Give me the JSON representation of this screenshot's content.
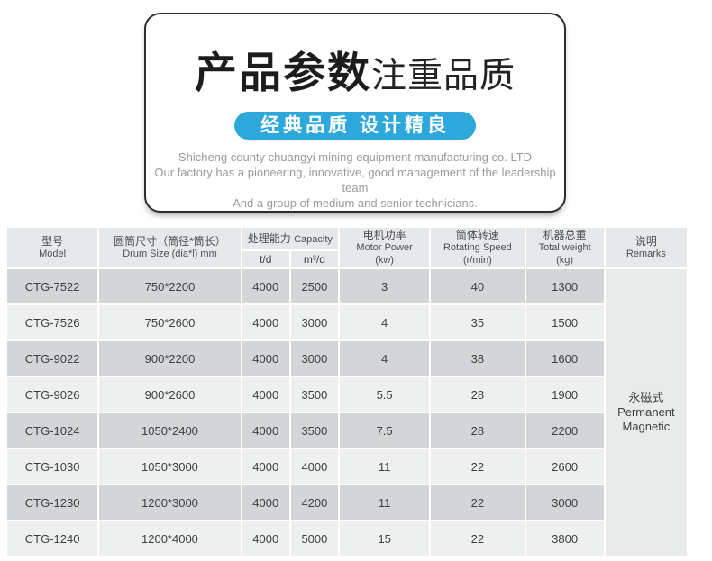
{
  "card": {
    "title_main": "产品参数",
    "title_sub": "注重品质",
    "banner": "经典品质  设计精良",
    "description_lines": [
      "Shicheng county chuangyi mining equipment manufacturing co. LTD",
      "Our factory has a pioneering, innovative, good management of the leadership team",
      "And a group of medium and senior technicians."
    ]
  },
  "colors": {
    "banner_blue": "#2ea7db",
    "card_border": "#2d2d2d",
    "row_dark": "#d3d6d6",
    "row_light": "#eef0f0",
    "header_bg": "#e6e9e9",
    "remarks_bg": "#e9ebeb",
    "desc_gray": "#9a9a9a",
    "cell_text": "#3b3f40"
  },
  "table": {
    "headers": {
      "model_zh": "型号",
      "model_en": "Model",
      "drum_zh": "圆筒尺寸（筒径*筒长）",
      "drum_en": "Drum Size (dia*l) mm",
      "capacity_zh": "处理能力",
      "capacity_en": "Capacity",
      "capacity_sub_td": "t/d",
      "capacity_sub_md": "m³/d",
      "motor_zh": "电机功率",
      "motor_en": "Motor Power",
      "motor_unit": "(kw)",
      "speed_zh": "筒体转速",
      "speed_en": "Rotating Speed",
      "speed_unit": "(r/min)",
      "weight_zh": "机器总重",
      "weight_en": "Total weight",
      "weight_unit": "(kg)",
      "remarks_zh": "说明",
      "remarks_en": "Remarks"
    },
    "rows": [
      {
        "model": "CTG-7522",
        "drum": "750*2200",
        "td": "4000",
        "md": "2500",
        "kw": "3",
        "rpm": "40",
        "kg": "1300"
      },
      {
        "model": "CTG-7526",
        "drum": "750*2600",
        "td": "4000",
        "md": "3000",
        "kw": "4",
        "rpm": "35",
        "kg": "1500"
      },
      {
        "model": "CTG-9022",
        "drum": "900*2200",
        "td": "4000",
        "md": "3000",
        "kw": "4",
        "rpm": "38",
        "kg": "1600"
      },
      {
        "model": "CTG-9026",
        "drum": "900*2600",
        "td": "4000",
        "md": "3500",
        "kw": "5.5",
        "rpm": "28",
        "kg": "1900"
      },
      {
        "model": "CTG-1024",
        "drum": "1050*2400",
        "td": "4000",
        "md": "3500",
        "kw": "7.5",
        "rpm": "28",
        "kg": "2200"
      },
      {
        "model": "CTG-1030",
        "drum": "1050*3000",
        "td": "4000",
        "md": "4000",
        "kw": "11",
        "rpm": "22",
        "kg": "2600"
      },
      {
        "model": "CTG-1230",
        "drum": "1200*3000",
        "td": "4000",
        "md": "4200",
        "kw": "11",
        "rpm": "22",
        "kg": "3000"
      },
      {
        "model": "CTG-1240",
        "drum": "1200*4000",
        "td": "4000",
        "md": "5000",
        "kw": "15",
        "rpm": "22",
        "kg": "3800"
      }
    ],
    "remarks": {
      "zh": "永磁式",
      "en_line1": "Permanent",
      "en_line2": "Magnetic"
    }
  }
}
